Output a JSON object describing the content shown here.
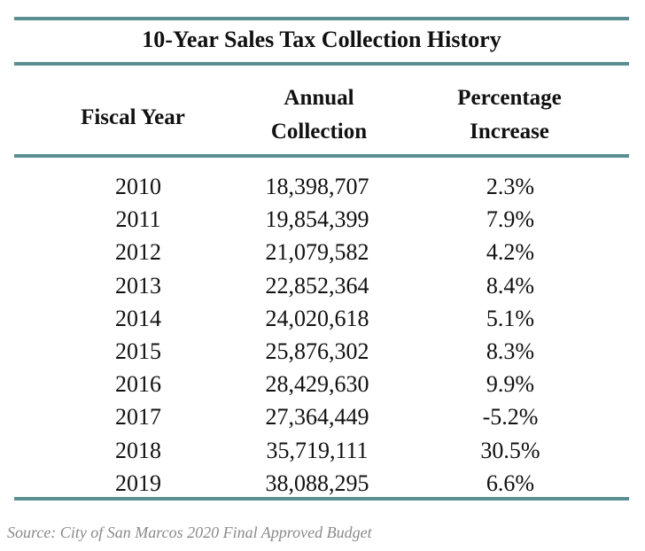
{
  "chart_data": {
    "type": "table",
    "title": "10-Year Sales Tax Collection History",
    "columns": [
      [
        "Fiscal Year"
      ],
      [
        "Annual",
        "Collection"
      ],
      [
        "Percentage",
        "Increase"
      ]
    ],
    "rows": [
      [
        "2010",
        "18,398,707",
        "2.3%"
      ],
      [
        "2011",
        "19,854,399",
        "7.9%"
      ],
      [
        "2012",
        "21,079,582",
        "4.2%"
      ],
      [
        "2013",
        "22,852,364",
        "8.4%"
      ],
      [
        "2014",
        "24,020,618",
        "5.1%"
      ],
      [
        "2015",
        "25,876,302",
        "8.3%"
      ],
      [
        "2016",
        "28,429,630",
        "9.9%"
      ],
      [
        "2017",
        "27,364,449",
        "-5.2%"
      ],
      [
        "2018",
        "35,719,111",
        "30.5%"
      ],
      [
        "2019",
        "38,088,295",
        "6.6%"
      ]
    ],
    "source": "Source: City of San Marcos 2020 Final Approved Budget",
    "rule_color": "#5a8f91"
  }
}
